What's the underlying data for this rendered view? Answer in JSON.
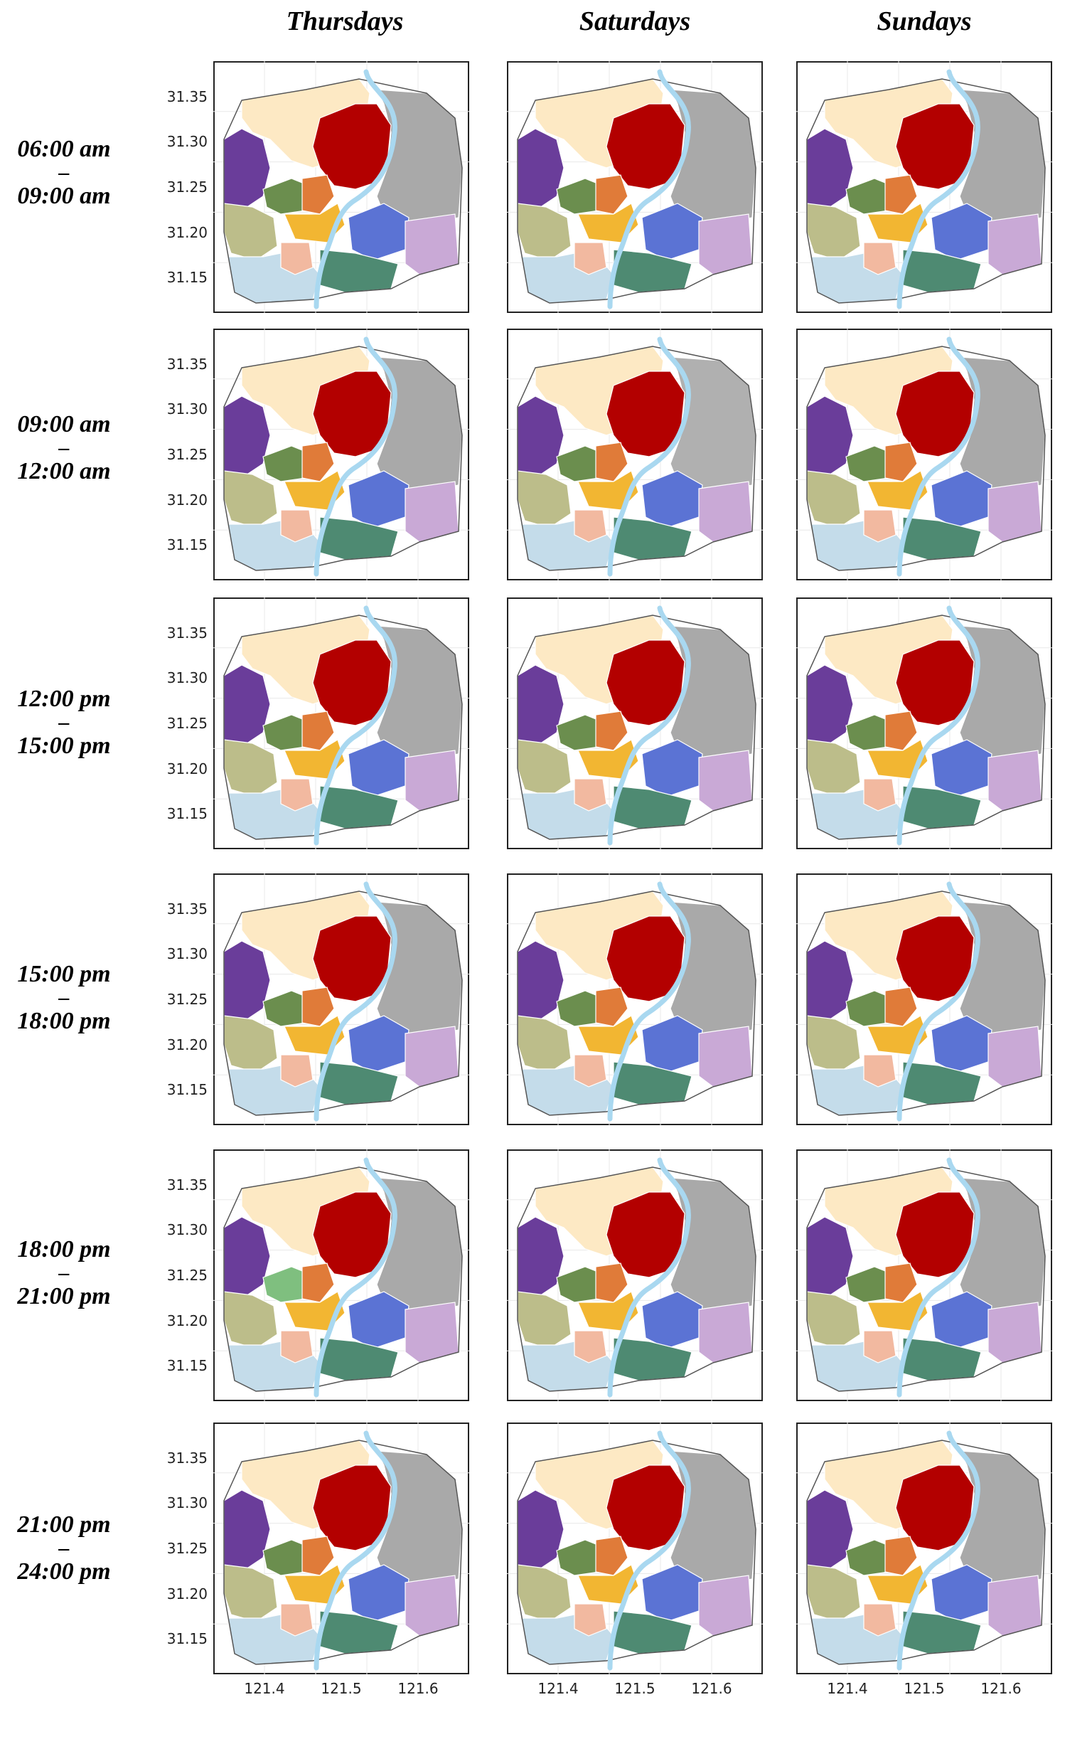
{
  "columns": [
    "Thursdays",
    "Saturdays",
    "Sundays"
  ],
  "rows": [
    {
      "start": "06:00 am",
      "dash": "–",
      "end": "09:00 am"
    },
    {
      "start": "09:00 am",
      "dash": "–",
      "end": "12:00 am"
    },
    {
      "start": "12:00 pm",
      "dash": "–",
      "end": "15:00 pm"
    },
    {
      "start": "15:00 pm",
      "dash": "–",
      "end": "18:00 pm"
    },
    {
      "start": "18:00 pm",
      "dash": "–",
      "end": "21:00 pm"
    },
    {
      "start": "21:00 pm",
      "dash": "–",
      "end": "24:00 pm"
    }
  ],
  "y_ticks": [
    "31.35",
    "31.30",
    "31.25",
    "31.20",
    "31.15"
  ],
  "x_ticks": [
    "121.4",
    "121.5",
    "121.6"
  ],
  "region_colors": {
    "north": "#fde9c4",
    "east": "#a9a9a9",
    "center_red": "#b30000",
    "west_purple": "#6a3d9a",
    "olive": "#bcbd8a",
    "green_mid": "#6b8e4e",
    "orange": "#e07b39",
    "yellow": "#f2b632",
    "blue": "#5b73d4",
    "lilac": "#c9a9d6",
    "teal": "#4e8a72",
    "lightblue": "#c4dcea",
    "peach": "#f2b9a0",
    "lightgreen": "#7fbf7f",
    "river": "#a9d8f0"
  }
}
